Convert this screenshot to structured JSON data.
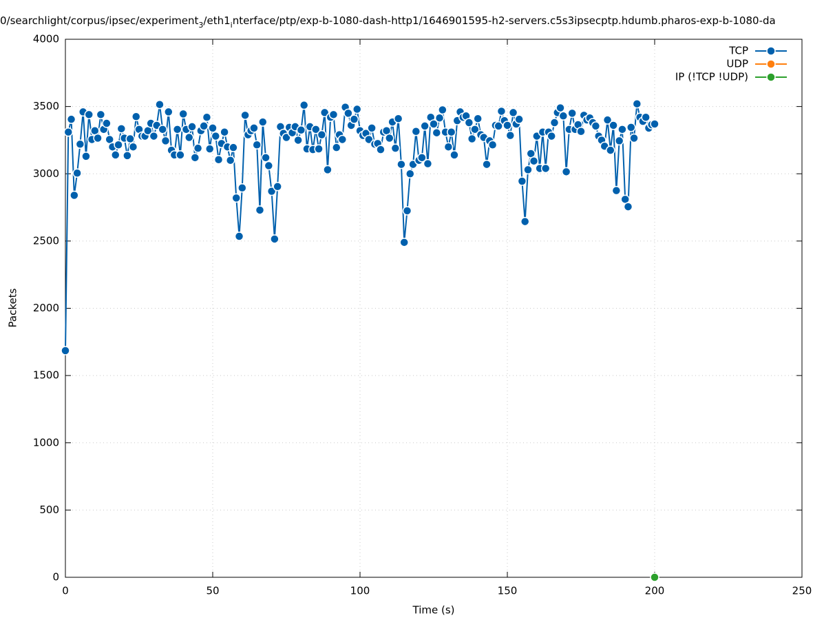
{
  "chart_data": {
    "type": "line",
    "title": [
      "0/searchlight/corpus/ipsec/experiment",
      "3",
      "/eth1",
      "i",
      "nterface/ptp/exp-b-1080-dash-http1/1646901595-h2-servers.c5s3ipsecptp.hdumb.pharos-exp-b-1080-da"
    ],
    "xlabel": "Time (s)",
    "ylabel": "Packets",
    "xlim": [
      0,
      250
    ],
    "xticks": [
      0,
      50,
      100,
      150,
      200,
      250
    ],
    "ylim": [
      0,
      4000
    ],
    "yticks": [
      0,
      500,
      1000,
      1500,
      2000,
      2500,
      3000,
      3500,
      4000
    ],
    "grid": true,
    "legend": "top-right",
    "series": [
      {
        "name": "TCP",
        "color": "#0060ad",
        "x": [
          0,
          1,
          2,
          3,
          4,
          5,
          6,
          7,
          8,
          9,
          10,
          11,
          12,
          13,
          14,
          15,
          16,
          17,
          18,
          19,
          20,
          21,
          22,
          23,
          24,
          25,
          26,
          27,
          28,
          29,
          30,
          31,
          32,
          33,
          34,
          35,
          36,
          37,
          38,
          39,
          40,
          41,
          42,
          43,
          44,
          45,
          46,
          47,
          48,
          49,
          50,
          51,
          52,
          53,
          54,
          55,
          56,
          57,
          58,
          59,
          60,
          61,
          62,
          63,
          64,
          65,
          66,
          67,
          68,
          69,
          70,
          71,
          72,
          73,
          74,
          75,
          76,
          77,
          78,
          79,
          80,
          81,
          82,
          83,
          84,
          85,
          86,
          87,
          88,
          89,
          90,
          91,
          92,
          93,
          94,
          95,
          96,
          97,
          98,
          99,
          100,
          101,
          102,
          103,
          104,
          105,
          106,
          107,
          108,
          109,
          110,
          111,
          112,
          113,
          114,
          115,
          116,
          117,
          118,
          119,
          120,
          121,
          122,
          123,
          124,
          125,
          126,
          127,
          128,
          129,
          130,
          131,
          132,
          133,
          134,
          135,
          136,
          137,
          138,
          139,
          140,
          141,
          142,
          143,
          144,
          145,
          146,
          147,
          148,
          149,
          150,
          151,
          152,
          153,
          154,
          155,
          156,
          157,
          158,
          159,
          160,
          161,
          162,
          163,
          164,
          165,
          166,
          167,
          168,
          169,
          170,
          171,
          172,
          173,
          174,
          175,
          176,
          177,
          178,
          179,
          180,
          181,
          182,
          183,
          184,
          185,
          186,
          187,
          188,
          189,
          190,
          191,
          192,
          193,
          194,
          195,
          196,
          197,
          198,
          199,
          200
        ],
        "values": [
          1685,
          3310,
          3405,
          2840,
          3005,
          3220,
          3460,
          3130,
          3440,
          3255,
          3320,
          3265,
          3440,
          3330,
          3375,
          3255,
          3200,
          3140,
          3215,
          3335,
          3265,
          3135,
          3260,
          3200,
          3425,
          3330,
          3280,
          3280,
          3320,
          3375,
          3280,
          3360,
          3515,
          3330,
          3245,
          3460,
          3175,
          3140,
          3330,
          3140,
          3445,
          3330,
          3270,
          3350,
          3120,
          3190,
          3320,
          3355,
          3420,
          3185,
          3340,
          3280,
          3105,
          3225,
          3310,
          3200,
          3100,
          3195,
          2820,
          2535,
          2895,
          3435,
          3290,
          3320,
          3340,
          3215,
          2730,
          3385,
          3120,
          3060,
          2870,
          2515,
          2905,
          3350,
          3300,
          3270,
          3345,
          3305,
          3350,
          3250,
          3325,
          3510,
          3185,
          3350,
          3180,
          3330,
          3185,
          3290,
          3455,
          3030,
          3420,
          3440,
          3195,
          3290,
          3255,
          3495,
          3450,
          3360,
          3405,
          3480,
          3320,
          3285,
          3300,
          3255,
          3340,
          3220,
          3225,
          3180,
          3310,
          3320,
          3265,
          3385,
          3190,
          3410,
          3070,
          2490,
          2725,
          3000,
          3070,
          3315,
          3100,
          3120,
          3355,
          3075,
          3420,
          3370,
          3305,
          3415,
          3475,
          3310,
          3200,
          3310,
          3140,
          3395,
          3460,
          3420,
          3430,
          3380,
          3260,
          3330,
          3410,
          3290,
          3270,
          3070,
          3245,
          3215,
          3360,
          3355,
          3465,
          3395,
          3360,
          3285,
          3455,
          3370,
          3405,
          2945,
          2645,
          3030,
          3150,
          3095,
          3280,
          3040,
          3310,
          3040,
          3310,
          3280,
          3380,
          3455,
          3490,
          3430,
          3015,
          3330,
          3450,
          3330,
          3365,
          3315,
          3435,
          3400,
          3415,
          3380,
          3355,
          3280,
          3250,
          3205,
          3400,
          3175,
          3360,
          2875,
          3245,
          3330,
          2810,
          2755,
          3345,
          3265,
          3520,
          3420,
          3390,
          3420,
          3340,
          3365,
          3370
        ]
      },
      {
        "name": "UDP",
        "color": "#ff7f0e",
        "x": [],
        "values": []
      },
      {
        "name": "IP (!TCP  !UDP)",
        "color": "#2ca02c",
        "x": [
          200
        ],
        "values": [
          0
        ]
      }
    ]
  }
}
